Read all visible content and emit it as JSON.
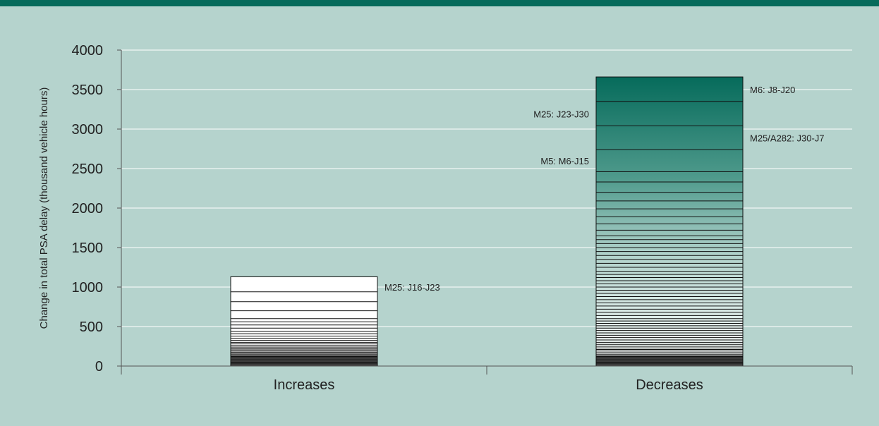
{
  "theme": {
    "background": "#b5d3cd",
    "band": "#066b5b",
    "accent_dark_green": "#066b5b",
    "segment_line": "#111111",
    "grid": "#ffffff"
  },
  "chart_data": {
    "type": "bar",
    "stacked": true,
    "ylabel": "Change in total PSA delay (thousand vehicle hours)",
    "xlabel": "",
    "ylim": [
      0,
      4000
    ],
    "yticks": [
      "0",
      "500",
      "1000",
      "1500",
      "2000",
      "2500",
      "3000",
      "3500",
      "4000"
    ],
    "grid": true,
    "categories": [
      "Increases",
      "Decreases"
    ],
    "bars": [
      {
        "category": "Increases",
        "total": 1130,
        "fill": "gradient-white",
        "boundaries": [
          0,
          10,
          20,
          30,
          40,
          50,
          60,
          70,
          80,
          90,
          100,
          110,
          120,
          130,
          145,
          160,
          175,
          190,
          205,
          220,
          240,
          260,
          280,
          300,
          325,
          350,
          380,
          410,
          440,
          480,
          520,
          560,
          600,
          700,
          815,
          940,
          1130
        ],
        "labels": [
          {
            "text": "M25: J16-J23",
            "value": 1000,
            "side": "right"
          }
        ]
      },
      {
        "category": "Decreases",
        "total": 3660,
        "fill": "gradient-green",
        "boundaries": [
          0,
          10,
          20,
          30,
          40,
          50,
          60,
          70,
          80,
          90,
          100,
          110,
          120,
          130,
          150,
          170,
          190,
          210,
          230,
          250,
          275,
          300,
          330,
          360,
          390,
          420,
          450,
          480,
          510,
          540,
          570,
          600,
          640,
          680,
          720,
          760,
          800,
          840,
          880,
          920,
          960,
          1000,
          1040,
          1080,
          1120,
          1160,
          1200,
          1250,
          1300,
          1350,
          1400,
          1450,
          1500,
          1550,
          1600,
          1650,
          1720,
          1800,
          1890,
          1990,
          2090,
          2200,
          2330,
          2460,
          2740,
          3040,
          3350,
          3660
        ],
        "labels": [
          {
            "text": "M6: J8-J20",
            "value": 3500,
            "side": "right"
          },
          {
            "text": "M25: J23-J30",
            "value": 3190,
            "side": "left"
          },
          {
            "text": "M25/A282: J30-J7",
            "value": 2890,
            "side": "right"
          },
          {
            "text": "M5: M6-J15",
            "value": 2600,
            "side": "left"
          }
        ]
      }
    ]
  }
}
